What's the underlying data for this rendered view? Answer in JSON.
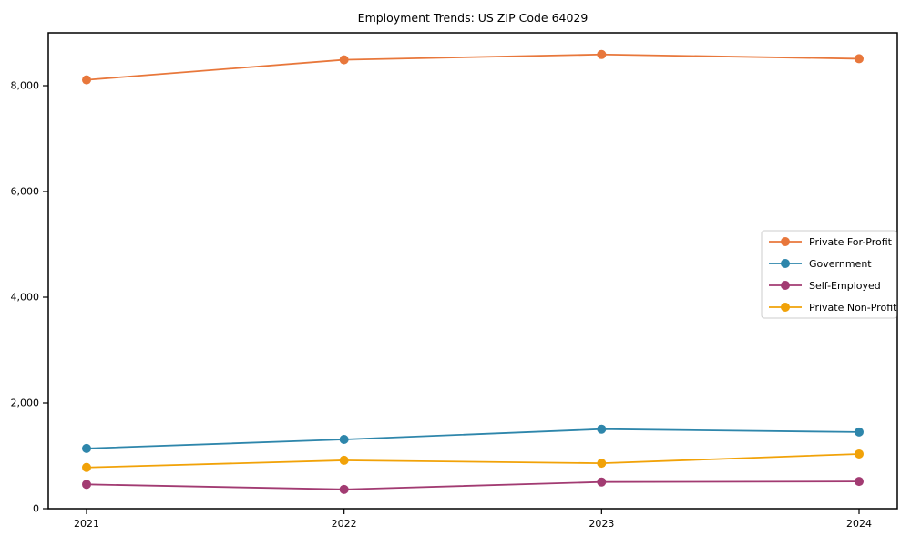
{
  "chart_data": {
    "type": "line",
    "title": "Employment Trends: US ZIP Code 64029",
    "xlabel": "",
    "ylabel": "",
    "x": [
      2021,
      2022,
      2023,
      2024
    ],
    "x_tick_labels": [
      "2021",
      "2022",
      "2023",
      "2024"
    ],
    "yticks": [
      0,
      2000,
      4000,
      6000,
      8000
    ],
    "ytick_labels": [
      "0",
      "2,000",
      "4,000",
      "6,000",
      "8,000"
    ],
    "ylim": [
      0,
      9000
    ],
    "grid": false,
    "legend_position": "center right",
    "series": [
      {
        "name": "Private For-Profit",
        "color": "#e8773b",
        "values": [
          8110,
          8490,
          8590,
          8510
        ]
      },
      {
        "name": "Government",
        "color": "#2e86ab",
        "values": [
          1140,
          1310,
          1505,
          1450
        ]
      },
      {
        "name": "Self-Employed",
        "color": "#a23b72",
        "values": [
          460,
          365,
          505,
          515
        ]
      },
      {
        "name": "Private Non-Profit",
        "color": "#f1a208",
        "values": [
          780,
          915,
          860,
          1035
        ]
      }
    ]
  }
}
